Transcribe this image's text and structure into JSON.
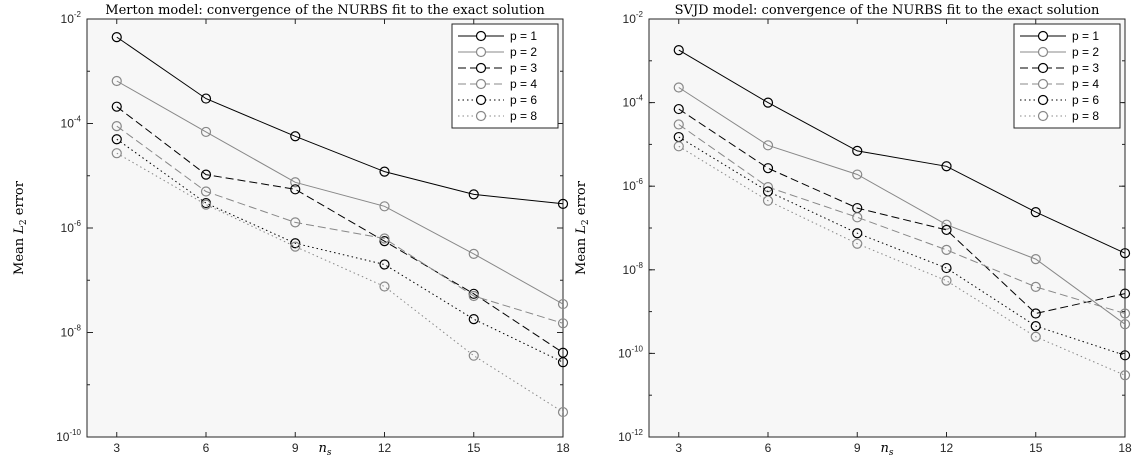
{
  "chart_data": [
    {
      "type": "line",
      "title": "Merton model: convergence of the NURBS fit to the exact solution",
      "xlabel": "n_s",
      "ylabel": "Mean L_2 error",
      "x_scale": "linear",
      "y_scale": "log",
      "xlim": [
        2,
        18
      ],
      "ylim": [
        1e-10,
        0.01
      ],
      "x_ticks": [
        3,
        6,
        9,
        12,
        15,
        18
      ],
      "y_ticks": [
        {
          "mantissa": "10",
          "exponent": "-10",
          "value": 1e-10
        },
        {
          "mantissa": "10",
          "exponent": "-8",
          "value": 1e-08
        },
        {
          "mantissa": "10",
          "exponent": "-6",
          "value": 1e-06
        },
        {
          "mantissa": "10",
          "exponent": "-4",
          "value": 0.0001
        },
        {
          "mantissa": "10",
          "exponent": "-2",
          "value": 0.01
        }
      ],
      "grid": false,
      "legend_position": "top-right",
      "x": [
        3,
        6,
        9,
        12,
        15,
        18
      ],
      "series": [
        {
          "name": "p = 1",
          "color": "#000000",
          "dash": "solid",
          "values": [
            0.0045,
            0.0003,
            5.7e-05,
            1.2e-05,
            4.4e-06,
            2.9e-06
          ]
        },
        {
          "name": "p = 2",
          "color": "#888888",
          "dash": "solid",
          "values": [
            0.00065,
            6.9e-05,
            7.5e-06,
            2.6e-06,
            3.2e-07,
            3.5e-08
          ]
        },
        {
          "name": "p = 3",
          "color": "#000000",
          "dash": "dashed",
          "values": [
            0.00021,
            1.05e-05,
            5.5e-06,
            5.6e-07,
            5.5e-08,
            4.1e-09
          ]
        },
        {
          "name": "p = 4",
          "color": "#888888",
          "dash": "dashed",
          "values": [
            8.9e-05,
            5e-06,
            1.28e-06,
            6.3e-07,
            5e-08,
            1.5e-08
          ]
        },
        {
          "name": "p = 6",
          "color": "#000000",
          "dash": "dotted",
          "values": [
            5e-05,
            3e-06,
            5.1e-07,
            2e-07,
            1.8e-08,
            2.7e-09
          ]
        },
        {
          "name": "p = 8",
          "color": "#888888",
          "dash": "dotted",
          "values": [
            2.7e-05,
            2.8e-06,
            4.4e-07,
            7.6e-08,
            3.6e-09,
            3e-10
          ]
        }
      ]
    },
    {
      "type": "line",
      "title": "SVJD model: convergence of the NURBS fit to the exact solution",
      "xlabel": "n_s",
      "ylabel": "Mean L_2 error",
      "x_scale": "linear",
      "y_scale": "log",
      "xlim": [
        2,
        18
      ],
      "ylim": [
        1e-12,
        0.01
      ],
      "x_ticks": [
        3,
        6,
        9,
        12,
        15,
        18
      ],
      "y_ticks": [
        {
          "mantissa": "10",
          "exponent": "-12",
          "value": 1e-12
        },
        {
          "mantissa": "10",
          "exponent": "-10",
          "value": 1e-10
        },
        {
          "mantissa": "10",
          "exponent": "-8",
          "value": 1e-08
        },
        {
          "mantissa": "10",
          "exponent": "-6",
          "value": 1e-06
        },
        {
          "mantissa": "10",
          "exponent": "-4",
          "value": 0.0001
        },
        {
          "mantissa": "10",
          "exponent": "-2",
          "value": 0.01
        }
      ],
      "grid": false,
      "legend_position": "top-right",
      "x": [
        3,
        6,
        9,
        12,
        15,
        18
      ],
      "series": [
        {
          "name": "p = 1",
          "color": "#000000",
          "dash": "solid",
          "values": [
            0.0018,
            0.0001,
            7e-06,
            3e-06,
            2.4e-07,
            2.5e-08
          ]
        },
        {
          "name": "p = 2",
          "color": "#888888",
          "dash": "solid",
          "values": [
            0.00023,
            9.5e-06,
            1.9e-06,
            1.2e-07,
            1.8e-08,
            5e-10
          ]
        },
        {
          "name": "p = 3",
          "color": "#000000",
          "dash": "dashed",
          "values": [
            7e-05,
            2.7e-06,
            3e-07,
            9e-08,
            9e-10,
            2.7e-09
          ]
        },
        {
          "name": "p = 4",
          "color": "#888888",
          "dash": "dashed",
          "values": [
            3e-05,
            9.5e-07,
            1.8e-07,
            3e-08,
            3.9e-09,
            9e-10
          ]
        },
        {
          "name": "p = 6",
          "color": "#000000",
          "dash": "dotted",
          "values": [
            1.5e-05,
            7.5e-07,
            7.5e-08,
            1.1e-08,
            4.5e-10,
            9e-11
          ]
        },
        {
          "name": "p = 8",
          "color": "#888888",
          "dash": "dotted",
          "values": [
            9e-06,
            4.5e-07,
            4.2e-08,
            5.5e-09,
            2.5e-10,
            3e-11
          ]
        }
      ]
    }
  ]
}
